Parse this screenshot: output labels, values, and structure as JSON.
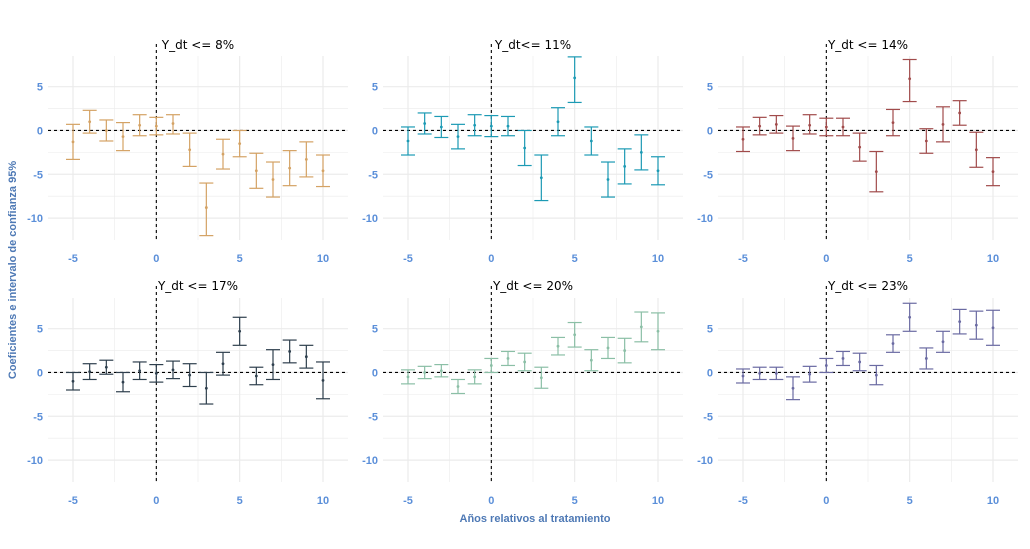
{
  "figure": {
    "xlabel": "Años relativos al tratamiento",
    "ylabel": "Coeficientes e intervalo de confianza 95%",
    "colors": {
      "tick": "#5b8fd9",
      "axis_title": "#4e79b5",
      "grid": "#ebebeb",
      "reference": "#000000"
    }
  },
  "chart_data": [
    {
      "type": "errorbar",
      "title": "Y_dt <= 8%",
      "color": "#d4a264",
      "xlim": [
        -6.5,
        11.5
      ],
      "ylim": [
        -12.5,
        8.5
      ],
      "xticks": [
        -5,
        0,
        5,
        10
      ],
      "yticks": [
        -10,
        -5,
        0,
        5
      ],
      "vline_x": 0,
      "hline_y": 0,
      "points": [
        {
          "x": -5,
          "y": -1.3,
          "lo": -3.3,
          "hi": 0.7
        },
        {
          "x": -4,
          "y": 1.0,
          "lo": -0.3,
          "hi": 2.3
        },
        {
          "x": -3,
          "y": 0.0,
          "lo": -1.2,
          "hi": 1.2
        },
        {
          "x": -2,
          "y": -0.7,
          "lo": -2.3,
          "hi": 0.9
        },
        {
          "x": -1,
          "y": 0.6,
          "lo": -0.6,
          "hi": 1.8
        },
        {
          "x": 0,
          "y": 0.5,
          "lo": -0.5,
          "hi": 1.5
        },
        {
          "x": 1,
          "y": 0.8,
          "lo": -0.4,
          "hi": 1.8
        },
        {
          "x": 2,
          "y": -2.2,
          "lo": -4.1,
          "hi": -0.3
        },
        {
          "x": 3,
          "y": -8.8,
          "lo": -12.0,
          "hi": -6.0
        },
        {
          "x": 4,
          "y": -2.7,
          "lo": -4.4,
          "hi": -1.0
        },
        {
          "x": 5,
          "y": -1.5,
          "lo": -3.0,
          "hi": 0.0
        },
        {
          "x": 6,
          "y": -4.6,
          "lo": -6.6,
          "hi": -2.6
        },
        {
          "x": 7,
          "y": -5.6,
          "lo": -7.6,
          "hi": -3.6
        },
        {
          "x": 8,
          "y": -4.3,
          "lo": -6.3,
          "hi": -2.3
        },
        {
          "x": 9,
          "y": -3.3,
          "lo": -5.3,
          "hi": -1.3
        },
        {
          "x": 10,
          "y": -4.6,
          "lo": -6.4,
          "hi": -2.8
        }
      ]
    },
    {
      "type": "errorbar",
      "title": "Y_dt<= 11%",
      "color": "#1c9ab4",
      "xlim": [
        -6.5,
        11.5
      ],
      "ylim": [
        -12.5,
        8.5
      ],
      "xticks": [
        -5,
        0,
        5,
        10
      ],
      "yticks": [
        -10,
        -5,
        0,
        5
      ],
      "vline_x": 0,
      "hline_y": 0,
      "points": [
        {
          "x": -5,
          "y": -1.2,
          "lo": -2.8,
          "hi": 0.4
        },
        {
          "x": -4,
          "y": 0.8,
          "lo": -0.4,
          "hi": 2.0
        },
        {
          "x": -3,
          "y": 0.4,
          "lo": -0.8,
          "hi": 1.6
        },
        {
          "x": -2,
          "y": -0.7,
          "lo": -2.1,
          "hi": 0.7
        },
        {
          "x": -1,
          "y": 0.6,
          "lo": -0.6,
          "hi": 1.8
        },
        {
          "x": 0,
          "y": 0.5,
          "lo": -0.7,
          "hi": 1.7
        },
        {
          "x": 1,
          "y": 0.5,
          "lo": -0.6,
          "hi": 1.6
        },
        {
          "x": 2,
          "y": -2.0,
          "lo": -4.0,
          "hi": 0.0
        },
        {
          "x": 3,
          "y": -5.4,
          "lo": -8.0,
          "hi": -2.8
        },
        {
          "x": 4,
          "y": 1.0,
          "lo": -0.6,
          "hi": 2.6
        },
        {
          "x": 5,
          "y": 6.0,
          "lo": 3.2,
          "hi": 8.4
        },
        {
          "x": 6,
          "y": -1.2,
          "lo": -2.8,
          "hi": 0.4
        },
        {
          "x": 7,
          "y": -5.6,
          "lo": -7.6,
          "hi": -3.6
        },
        {
          "x": 8,
          "y": -4.1,
          "lo": -6.1,
          "hi": -2.1
        },
        {
          "x": 9,
          "y": -2.5,
          "lo": -4.5,
          "hi": -0.5
        },
        {
          "x": 10,
          "y": -4.6,
          "lo": -6.2,
          "hi": -3.0
        }
      ]
    },
    {
      "type": "errorbar",
      "title": "Y_dt <= 14%",
      "color": "#a14b4b",
      "xlim": [
        -6.5,
        11.5
      ],
      "ylim": [
        -12.5,
        8.5
      ],
      "xticks": [
        -5,
        0,
        5,
        10
      ],
      "yticks": [
        -10,
        -5,
        0,
        5
      ],
      "vline_x": 0,
      "hline_y": 0,
      "points": [
        {
          "x": -5,
          "y": -1.0,
          "lo": -2.4,
          "hi": 0.4
        },
        {
          "x": -4,
          "y": 0.5,
          "lo": -0.5,
          "hi": 1.5
        },
        {
          "x": -3,
          "y": 0.7,
          "lo": -0.3,
          "hi": 1.7
        },
        {
          "x": -2,
          "y": -0.9,
          "lo": -2.3,
          "hi": 0.5
        },
        {
          "x": -1,
          "y": 0.6,
          "lo": -0.4,
          "hi": 1.8
        },
        {
          "x": 0,
          "y": 0.4,
          "lo": -0.6,
          "hi": 1.4
        },
        {
          "x": 1,
          "y": 0.4,
          "lo": -0.6,
          "hi": 1.4
        },
        {
          "x": 2,
          "y": -1.9,
          "lo": -3.5,
          "hi": -0.3
        },
        {
          "x": 3,
          "y": -4.7,
          "lo": -7.0,
          "hi": -2.4
        },
        {
          "x": 4,
          "y": 0.9,
          "lo": -0.6,
          "hi": 2.4
        },
        {
          "x": 5,
          "y": 5.9,
          "lo": 3.3,
          "hi": 8.1
        },
        {
          "x": 6,
          "y": -1.2,
          "lo": -2.6,
          "hi": 0.2
        },
        {
          "x": 7,
          "y": 0.7,
          "lo": -1.3,
          "hi": 2.7
        },
        {
          "x": 8,
          "y": 2.0,
          "lo": 0.6,
          "hi": 3.4
        },
        {
          "x": 9,
          "y": -2.2,
          "lo": -4.2,
          "hi": -0.2
        },
        {
          "x": 10,
          "y": -4.7,
          "lo": -6.3,
          "hi": -3.1
        }
      ]
    },
    {
      "type": "errorbar",
      "title": "Y_dt <= 17%",
      "color": "#2e3f4d",
      "xlim": [
        -6.5,
        11.5
      ],
      "ylim": [
        -12.5,
        8.5
      ],
      "xticks": [
        -5,
        0,
        5,
        10
      ],
      "yticks": [
        -10,
        -5,
        0,
        5
      ],
      "vline_x": 0,
      "hline_y": 0,
      "points": [
        {
          "x": -5,
          "y": -1.0,
          "lo": -2.0,
          "hi": 0.0
        },
        {
          "x": -4,
          "y": 0.1,
          "lo": -0.8,
          "hi": 1.0
        },
        {
          "x": -3,
          "y": 0.6,
          "lo": -0.2,
          "hi": 1.4
        },
        {
          "x": -2,
          "y": -1.1,
          "lo": -2.2,
          "hi": 0.0
        },
        {
          "x": -1,
          "y": 0.2,
          "lo": -0.8,
          "hi": 1.2
        },
        {
          "x": 0,
          "y": -0.1,
          "lo": -1.1,
          "hi": 0.9
        },
        {
          "x": 1,
          "y": 0.3,
          "lo": -0.7,
          "hi": 1.3
        },
        {
          "x": 2,
          "y": -0.3,
          "lo": -1.6,
          "hi": 1.0
        },
        {
          "x": 3,
          "y": -1.8,
          "lo": -3.6,
          "hi": 0.0
        },
        {
          "x": 4,
          "y": 1.0,
          "lo": -0.3,
          "hi": 2.3
        },
        {
          "x": 5,
          "y": 4.7,
          "lo": 3.1,
          "hi": 6.3
        },
        {
          "x": 6,
          "y": -0.4,
          "lo": -1.4,
          "hi": 0.6
        },
        {
          "x": 7,
          "y": 0.9,
          "lo": -0.8,
          "hi": 2.6
        },
        {
          "x": 8,
          "y": 2.4,
          "lo": 1.1,
          "hi": 3.7
        },
        {
          "x": 9,
          "y": 1.8,
          "lo": 0.5,
          "hi": 3.1
        },
        {
          "x": 10,
          "y": -0.9,
          "lo": -3.0,
          "hi": 1.2
        }
      ]
    },
    {
      "type": "errorbar",
      "title": "Y_dt <= 20%",
      "color": "#8bbfa6",
      "xlim": [
        -6.5,
        11.5
      ],
      "ylim": [
        -12.5,
        8.5
      ],
      "xticks": [
        -5,
        0,
        5,
        10
      ],
      "yticks": [
        -10,
        -5,
        0,
        5
      ],
      "vline_x": 0,
      "hline_y": 0,
      "points": [
        {
          "x": -5,
          "y": -0.5,
          "lo": -1.3,
          "hi": 0.3
        },
        {
          "x": -4,
          "y": 0.0,
          "lo": -0.7,
          "hi": 0.7
        },
        {
          "x": -3,
          "y": 0.2,
          "lo": -0.5,
          "hi": 0.9
        },
        {
          "x": -2,
          "y": -1.6,
          "lo": -2.4,
          "hi": -0.8
        },
        {
          "x": -1,
          "y": -0.5,
          "lo": -1.3,
          "hi": 0.3
        },
        {
          "x": 0,
          "y": 0.8,
          "lo": 0.0,
          "hi": 1.6
        },
        {
          "x": 1,
          "y": 1.6,
          "lo": 0.8,
          "hi": 2.4
        },
        {
          "x": 2,
          "y": 1.2,
          "lo": 0.2,
          "hi": 2.2
        },
        {
          "x": 3,
          "y": -0.6,
          "lo": -1.8,
          "hi": 0.6
        },
        {
          "x": 4,
          "y": 3.0,
          "lo": 2.0,
          "hi": 4.0
        },
        {
          "x": 5,
          "y": 4.3,
          "lo": 2.9,
          "hi": 5.7
        },
        {
          "x": 6,
          "y": 1.4,
          "lo": 0.2,
          "hi": 2.6
        },
        {
          "x": 7,
          "y": 2.8,
          "lo": 1.6,
          "hi": 4.0
        },
        {
          "x": 8,
          "y": 2.5,
          "lo": 1.1,
          "hi": 3.9
        },
        {
          "x": 9,
          "y": 5.2,
          "lo": 3.5,
          "hi": 6.9
        },
        {
          "x": 10,
          "y": 4.7,
          "lo": 2.6,
          "hi": 6.8
        }
      ]
    },
    {
      "type": "errorbar",
      "title": "Y_dt <= 23%",
      "color": "#6a6aa2",
      "xlim": [
        -6.5,
        11.5
      ],
      "ylim": [
        -12.5,
        8.5
      ],
      "xticks": [
        -5,
        0,
        5,
        10
      ],
      "yticks": [
        -10,
        -5,
        0,
        5
      ],
      "vline_x": 0,
      "hline_y": 0,
      "points": [
        {
          "x": -5,
          "y": -0.4,
          "lo": -1.2,
          "hi": 0.4
        },
        {
          "x": -4,
          "y": -0.1,
          "lo": -0.8,
          "hi": 0.6
        },
        {
          "x": -3,
          "y": -0.1,
          "lo": -0.8,
          "hi": 0.6
        },
        {
          "x": -2,
          "y": -1.8,
          "lo": -3.1,
          "hi": -0.5
        },
        {
          "x": -1,
          "y": -0.2,
          "lo": -1.1,
          "hi": 0.7
        },
        {
          "x": 0,
          "y": 0.8,
          "lo": 0.0,
          "hi": 1.6
        },
        {
          "x": 1,
          "y": 1.6,
          "lo": 0.8,
          "hi": 2.4
        },
        {
          "x": 2,
          "y": 1.2,
          "lo": 0.2,
          "hi": 2.2
        },
        {
          "x": 3,
          "y": -0.3,
          "lo": -1.4,
          "hi": 0.8
        },
        {
          "x": 4,
          "y": 3.3,
          "lo": 2.3,
          "hi": 4.3
        },
        {
          "x": 5,
          "y": 6.3,
          "lo": 4.7,
          "hi": 7.9
        },
        {
          "x": 6,
          "y": 1.6,
          "lo": 0.4,
          "hi": 2.8
        },
        {
          "x": 7,
          "y": 3.5,
          "lo": 2.3,
          "hi": 4.7
        },
        {
          "x": 8,
          "y": 5.8,
          "lo": 4.4,
          "hi": 7.2
        },
        {
          "x": 9,
          "y": 5.4,
          "lo": 3.8,
          "hi": 7.0
        },
        {
          "x": 10,
          "y": 5.1,
          "lo": 3.1,
          "hi": 7.1
        }
      ]
    }
  ]
}
